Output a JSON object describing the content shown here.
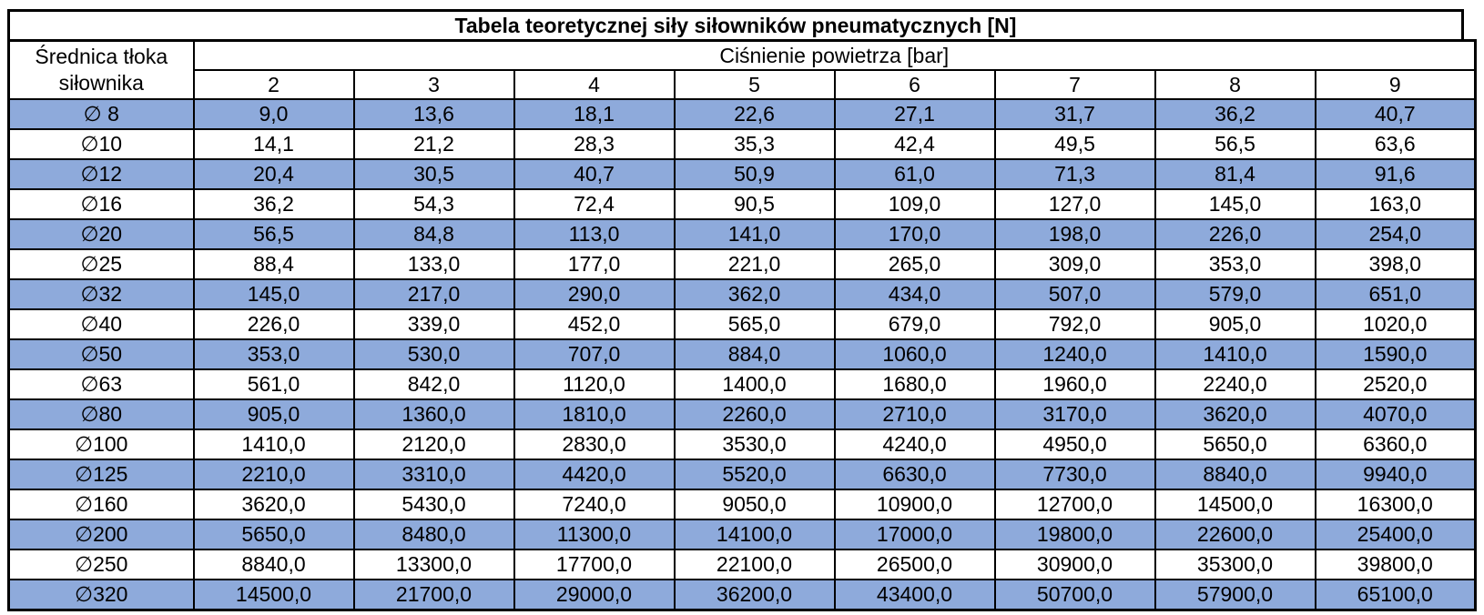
{
  "colors": {
    "highlight_row": "#8EAADB",
    "plain_row": "#FFFFFF",
    "border": "#000000",
    "text": "#000000"
  },
  "chart_data": {
    "type": "table",
    "title": "Tabela teoretycznej siły siłowników pneumatycznych [N]",
    "row_header_title": [
      "Średnica tłoka",
      "siłownika"
    ],
    "column_group_label": "Ciśnienie powietrza [bar]",
    "columns": [
      "2",
      "3",
      "4",
      "5",
      "6",
      "7",
      "8",
      "9"
    ],
    "rows": [
      {
        "diameter": "∅ 8",
        "values": [
          "9,0",
          "13,6",
          "18,1",
          "22,6",
          "27,1",
          "31,7",
          "36,2",
          "40,7"
        ]
      },
      {
        "diameter": "∅10",
        "values": [
          "14,1",
          "21,2",
          "28,3",
          "35,3",
          "42,4",
          "49,5",
          "56,5",
          "63,6"
        ]
      },
      {
        "diameter": "∅12",
        "values": [
          "20,4",
          "30,5",
          "40,7",
          "50,9",
          "61,0",
          "71,3",
          "81,4",
          "91,6"
        ]
      },
      {
        "diameter": "∅16",
        "values": [
          "36,2",
          "54,3",
          "72,4",
          "90,5",
          "109,0",
          "127,0",
          "145,0",
          "163,0"
        ]
      },
      {
        "diameter": "∅20",
        "values": [
          "56,5",
          "84,8",
          "113,0",
          "141,0",
          "170,0",
          "198,0",
          "226,0",
          "254,0"
        ]
      },
      {
        "diameter": "∅25",
        "values": [
          "88,4",
          "133,0",
          "177,0",
          "221,0",
          "265,0",
          "309,0",
          "353,0",
          "398,0"
        ]
      },
      {
        "diameter": "∅32",
        "values": [
          "145,0",
          "217,0",
          "290,0",
          "362,0",
          "434,0",
          "507,0",
          "579,0",
          "651,0"
        ]
      },
      {
        "diameter": "∅40",
        "values": [
          "226,0",
          "339,0",
          "452,0",
          "565,0",
          "679,0",
          "792,0",
          "905,0",
          "1020,0"
        ]
      },
      {
        "diameter": "∅50",
        "values": [
          "353,0",
          "530,0",
          "707,0",
          "884,0",
          "1060,0",
          "1240,0",
          "1410,0",
          "1590,0"
        ]
      },
      {
        "diameter": "∅63",
        "values": [
          "561,0",
          "842,0",
          "1120,0",
          "1400,0",
          "1680,0",
          "1960,0",
          "2240,0",
          "2520,0"
        ]
      },
      {
        "diameter": "∅80",
        "values": [
          "905,0",
          "1360,0",
          "1810,0",
          "2260,0",
          "2710,0",
          "3170,0",
          "3620,0",
          "4070,0"
        ]
      },
      {
        "diameter": "∅100",
        "values": [
          "1410,0",
          "2120,0",
          "2830,0",
          "3530,0",
          "4240,0",
          "4950,0",
          "5650,0",
          "6360,0"
        ]
      },
      {
        "diameter": "∅125",
        "values": [
          "2210,0",
          "3310,0",
          "4420,0",
          "5520,0",
          "6630,0",
          "7730,0",
          "8840,0",
          "9940,0"
        ]
      },
      {
        "diameter": "∅160",
        "values": [
          "3620,0",
          "5430,0",
          "7240,0",
          "9050,0",
          "10900,0",
          "12700,0",
          "14500,0",
          "16300,0"
        ]
      },
      {
        "diameter": "∅200",
        "values": [
          "5650,0",
          "8480,0",
          "11300,0",
          "14100,0",
          "17000,0",
          "19800,0",
          "22600,0",
          "25400,0"
        ]
      },
      {
        "diameter": "∅250",
        "values": [
          "8840,0",
          "13300,0",
          "17700,0",
          "22100,0",
          "26500,0",
          "30900,0",
          "35300,0",
          "39800,0"
        ]
      },
      {
        "diameter": "∅320",
        "values": [
          "14500,0",
          "21700,0",
          "29000,0",
          "36200,0",
          "43400,0",
          "50700,0",
          "57900,0",
          "65100,0"
        ]
      }
    ],
    "striping": "even rows highlighted blue starting with first data row"
  }
}
